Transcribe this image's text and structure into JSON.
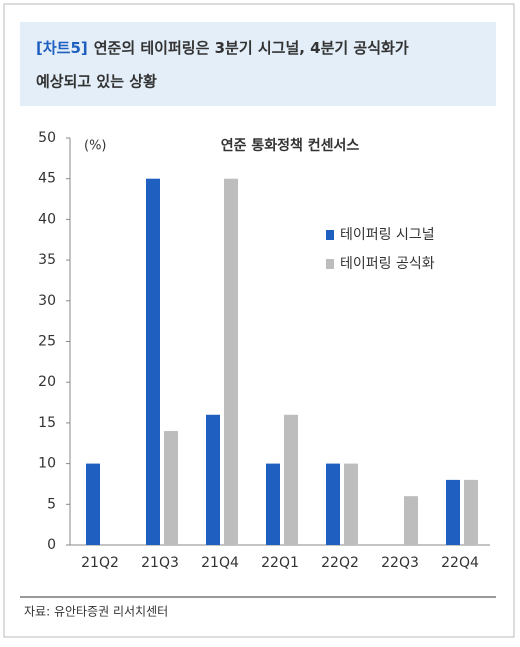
{
  "header": {
    "label": "[차트5]",
    "title": [
      "연준의 테이퍼링은 3분기 시그널, 4분기 공식화가",
      "예상되고 있는 상황"
    ]
  },
  "chart_data": {
    "type": "bar",
    "title": "연준 통화정책 컨센서스",
    "y_unit": "(%)",
    "categories": [
      "21Q2",
      "21Q3",
      "21Q4",
      "22Q1",
      "22Q2",
      "22Q3",
      "22Q4"
    ],
    "series": [
      {
        "name": "테이퍼링 시그널",
        "color": "#1f5fbf",
        "values": [
          10,
          45,
          16,
          10,
          10,
          0,
          8
        ]
      },
      {
        "name": "테이퍼링 공식화",
        "color": "#bdbdbd",
        "values": [
          0,
          14,
          45,
          16,
          10,
          6,
          8
        ]
      }
    ],
    "ylim": [
      0,
      50
    ],
    "yticks": [
      0,
      5,
      10,
      15,
      20,
      25,
      30,
      35,
      40,
      45,
      50
    ],
    "grid": false,
    "legend": "upper right"
  },
  "source": "자료: 유안타증권 리서치센터"
}
